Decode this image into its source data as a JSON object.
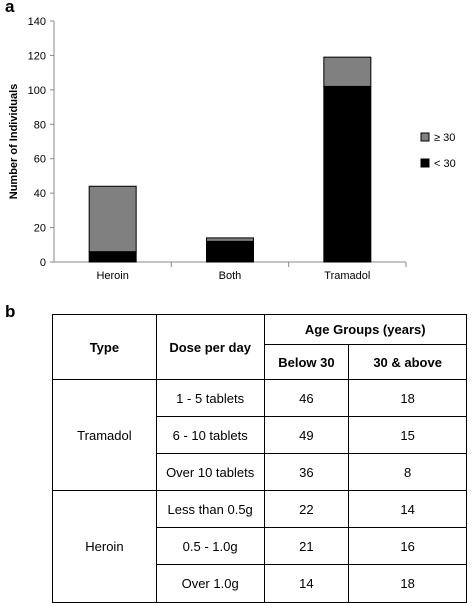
{
  "panels": {
    "a": "a",
    "b": "b"
  },
  "chart_data": {
    "type": "bar",
    "stacked": true,
    "categories": [
      "Heroin",
      "Both",
      "Tramadol"
    ],
    "series": [
      {
        "name": "< 30",
        "values": [
          6,
          12,
          102
        ],
        "color": "#000000"
      },
      {
        "name": "≥ 30",
        "values": [
          38,
          2,
          17
        ],
        "color": "#808080"
      }
    ],
    "ylabel": "Number of Individuals",
    "xlabel": "",
    "ylim": [
      0,
      140
    ],
    "yticks": [
      0,
      20,
      40,
      60,
      80,
      100,
      120,
      140
    ],
    "grid": false,
    "legend_position": "right",
    "legend": [
      {
        "name": "≥ 30",
        "color": "#808080"
      },
      {
        "name": "< 30",
        "color": "#000000"
      }
    ]
  },
  "table": {
    "headers": {
      "type": "Type",
      "dose": "Dose per day",
      "age_groups": "Age Groups (years)",
      "below30": "Below 30",
      "above30": "30 & above"
    },
    "groups": [
      {
        "type": "Tramadol",
        "rows": [
          {
            "dose": "1 - 5 tablets",
            "below30": "46",
            "above30": "18"
          },
          {
            "dose": "6 - 10 tablets",
            "below30": "49",
            "above30": "15"
          },
          {
            "dose": "Over 10 tablets",
            "below30": "36",
            "above30": "8"
          }
        ]
      },
      {
        "type": "Heroin",
        "rows": [
          {
            "dose": "Less than 0.5g",
            "below30": "22",
            "above30": "14"
          },
          {
            "dose": "0.5 - 1.0g",
            "below30": "21",
            "above30": "16"
          },
          {
            "dose": "Over 1.0g",
            "below30": "14",
            "above30": "18"
          }
        ]
      }
    ]
  }
}
